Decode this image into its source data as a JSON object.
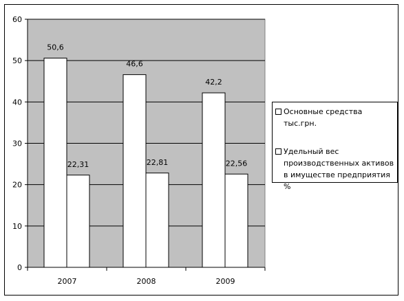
{
  "chart_data": {
    "type": "bar",
    "categories": [
      "2007",
      "2008",
      "2009"
    ],
    "series": [
      {
        "name": "Основные средства тыс.грн.",
        "values": [
          50.6,
          46.6,
          42.2
        ],
        "labels": [
          "50,6",
          "46,6",
          "42,2"
        ],
        "color": "#ffffff"
      },
      {
        "name": "Удельный вес производственных активов в имуществе предприятия %",
        "values": [
          22.31,
          22.81,
          22.56
        ],
        "labels": [
          "22,31",
          "22,81",
          "22,56"
        ],
        "color": "#ffffff"
      }
    ],
    "yticks": [
      "0",
      "10",
      "20",
      "30",
      "40",
      "50",
      "60"
    ],
    "ylim": [
      0,
      60
    ],
    "plot_background": "#c0c0c0",
    "grid": true,
    "legend_position": "right"
  }
}
